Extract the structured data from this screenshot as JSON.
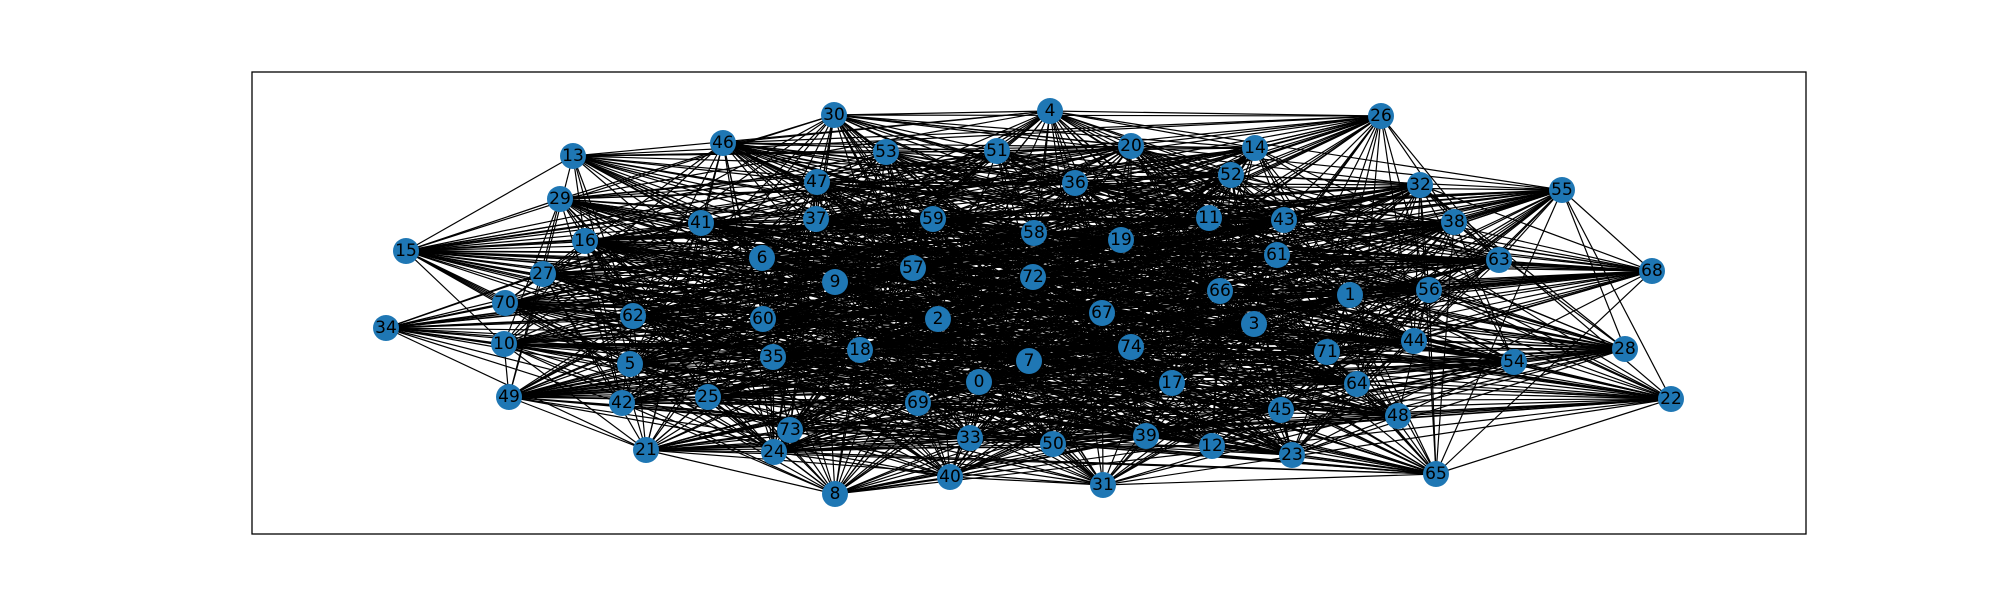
{
  "graph": {
    "node_color": "#1f77b4",
    "edge_color": "#000000",
    "frame_color": "#000000",
    "edge_density": 0.5,
    "nodes": [
      "0",
      "1",
      "2",
      "3",
      "4",
      "5",
      "6",
      "7",
      "8",
      "9",
      "10",
      "11",
      "12",
      "13",
      "14",
      "15",
      "16",
      "17",
      "18",
      "19",
      "20",
      "21",
      "22",
      "23",
      "24",
      "25",
      "26",
      "27",
      "28",
      "29",
      "30",
      "31",
      "32",
      "33",
      "34",
      "35",
      "36",
      "37",
      "38",
      "39",
      "40",
      "41",
      "42",
      "43",
      "44",
      "45",
      "46",
      "47",
      "48",
      "49",
      "50",
      "51",
      "52",
      "53",
      "54",
      "55",
      "56",
      "57",
      "58",
      "59",
      "60",
      "61",
      "62",
      "63",
      "64",
      "65",
      "66",
      "67",
      "68",
      "69",
      "70",
      "71",
      "72",
      "73",
      "74"
    ]
  }
}
